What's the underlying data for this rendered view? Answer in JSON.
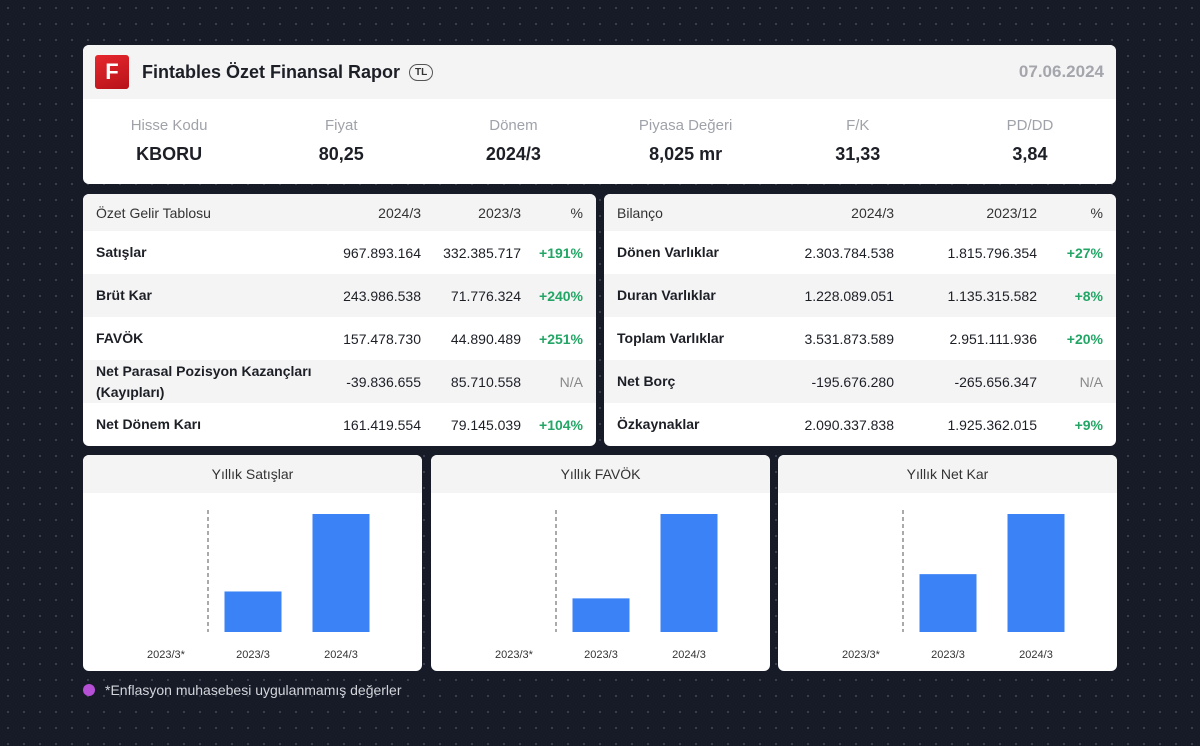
{
  "header": {
    "logo_letter": "F",
    "title": "Fintables Özet Finansal Rapor",
    "currency": "TL",
    "date": "07.06.2024"
  },
  "stats": [
    {
      "label": "Hisse Kodu",
      "value": "KBORU"
    },
    {
      "label": "Fiyat",
      "value": "80,25"
    },
    {
      "label": "Dönem",
      "value": "2024/3"
    },
    {
      "label": "Piyasa Değeri",
      "value": "8,025 mr"
    },
    {
      "label": "F/K",
      "value": "31,33"
    },
    {
      "label": "PD/DD",
      "value": "3,84"
    }
  ],
  "income": {
    "headers": [
      "Özet Gelir Tablosu",
      "2024/3",
      "2023/3",
      "%"
    ],
    "rows": [
      {
        "label": "Satışlar",
        "cur": "967.893.164",
        "prev": "332.385.717",
        "pct": "+191%"
      },
      {
        "label": "Brüt Kar",
        "cur": "243.986.538",
        "prev": "71.776.324",
        "pct": "+240%"
      },
      {
        "label": "FAVÖK",
        "cur": "157.478.730",
        "prev": "44.890.489",
        "pct": "+251%"
      },
      {
        "label": "Net Parasal Pozisyon Kazançları (Kayıpları)",
        "cur": "-39.836.655",
        "prev": "85.710.558",
        "pct": "N/A"
      },
      {
        "label": "Net Dönem Karı",
        "cur": "161.419.554",
        "prev": "79.145.039",
        "pct": "+104%"
      }
    ]
  },
  "balance": {
    "headers": [
      "Bilanço",
      "2024/3",
      "2023/12",
      "%"
    ],
    "rows": [
      {
        "label": "Dönen Varlıklar",
        "cur": "2.303.784.538",
        "prev": "1.815.796.354",
        "pct": "+27%"
      },
      {
        "label": "Duran Varlıklar",
        "cur": "1.228.089.051",
        "prev": "1.135.315.582",
        "pct": "+8%"
      },
      {
        "label": "Toplam Varlıklar",
        "cur": "3.531.873.589",
        "prev": "2.951.111.936",
        "pct": "+20%"
      },
      {
        "label": "Net Borç",
        "cur": "-195.676.280",
        "prev": "-265.656.347",
        "pct": "N/A"
      },
      {
        "label": "Özkaynaklar",
        "cur": "2.090.337.838",
        "prev": "1.925.362.015",
        "pct": "+9%"
      }
    ]
  },
  "chart_data": [
    {
      "type": "bar",
      "title": "Yıllık Satışlar",
      "categories": [
        "2023/3*",
        "2023/3",
        "2024/3"
      ],
      "values": [
        null,
        332385717,
        967893164
      ]
    },
    {
      "type": "bar",
      "title": "Yıllık FAVÖK",
      "categories": [
        "2023/3*",
        "2023/3",
        "2024/3"
      ],
      "values": [
        null,
        44890489,
        157478730
      ]
    },
    {
      "type": "bar",
      "title": "Yıllık Net Kar",
      "categories": [
        "2023/3*",
        "2023/3",
        "2024/3"
      ],
      "values": [
        null,
        79145039,
        161419554
      ]
    }
  ],
  "colors": {
    "bar": "#3b82f6",
    "positive": "#23a566",
    "note_dot": "#b54fd6",
    "brand": "#e6272e"
  },
  "footnote": "*Enflasyon muhasebesi uygulanmamış değerler"
}
